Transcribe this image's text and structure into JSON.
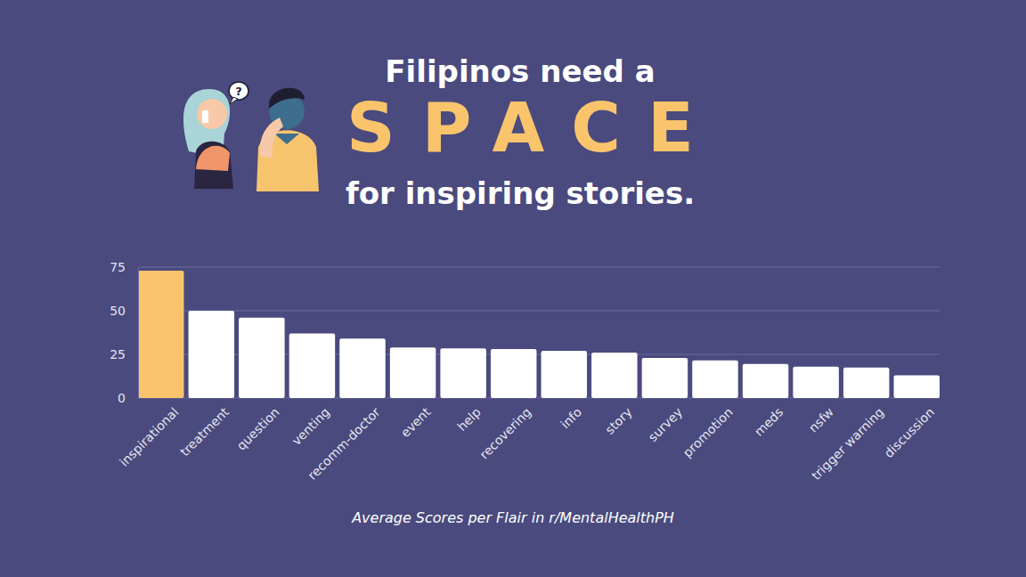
{
  "chart_data": {
    "type": "bar",
    "title": [
      "Filipinos need a",
      "SPACE",
      "for inspiring stories."
    ],
    "annotations": [
      "?"
    ],
    "xlabel": "Average Scores per Flair in r/MentalHealthPH",
    "categories": [
      "inspirational",
      "treatment",
      "question",
      "venting",
      "recomm-doctor",
      "event",
      "help",
      "recovering",
      "info",
      "story",
      "survey",
      "promotion",
      "meds",
      "nsfw",
      "trigger warning",
      "discussion"
    ],
    "values": [
      73,
      50,
      46,
      37,
      34,
      29,
      28.5,
      28,
      27,
      26,
      23,
      21.5,
      19.5,
      18,
      17.5,
      13
    ],
    "colors": [
      "#f9c46b",
      "#ffffff",
      "#ffffff",
      "#ffffff",
      "#ffffff",
      "#ffffff",
      "#ffffff",
      "#ffffff",
      "#ffffff",
      "#ffffff",
      "#ffffff",
      "#ffffff",
      "#ffffff",
      "#ffffff",
      "#ffffff",
      "#ffffff"
    ],
    "ylim": [
      0,
      75
    ],
    "yticks": [
      0,
      25,
      50,
      75
    ],
    "grid": true
  }
}
